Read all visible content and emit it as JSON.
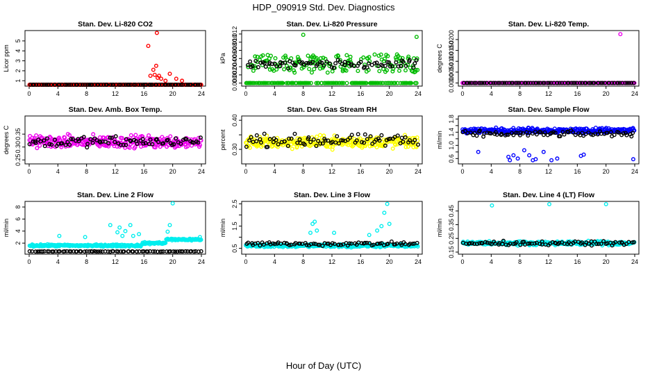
{
  "title": "HDP_090919  Std. Dev. Diagnostics",
  "xlabel": "Hour of Day (UTC)",
  "chart_data": [
    {
      "type": "scatter",
      "title": "Stan. Dev. Li-820 CO2",
      "ylabel": "Licor ppm",
      "xlim": [
        0,
        24
      ],
      "ylim": [
        0.6,
        5.9
      ],
      "xticks": [
        0,
        4,
        8,
        12,
        16,
        20,
        24
      ],
      "yticks": [
        1,
        2,
        3,
        4,
        5
      ],
      "ytick_labels": [
        "1",
        "2",
        "3",
        "4",
        "5"
      ],
      "series": [
        {
          "name": "main",
          "color": "#ff0000",
          "base": 0.42,
          "spread": 0.05,
          "kind": "band",
          "extra": [
            [
              16.6,
              4.5
            ],
            [
              16.9,
              1.5
            ],
            [
              17.3,
              2.1
            ],
            [
              17.5,
              1.6
            ],
            [
              17.7,
              2.5
            ],
            [
              17.8,
              5.8
            ],
            [
              17.9,
              1.3
            ],
            [
              18.1,
              1.5
            ],
            [
              18.4,
              1.2
            ],
            [
              19.0,
              1.0
            ],
            [
              19.6,
              1.7
            ],
            [
              20.5,
              1.2
            ],
            [
              21.3,
              1.0
            ]
          ]
        },
        {
          "name": "reference",
          "color": "#000000",
          "base": 0.42,
          "spread": 0.05
        }
      ]
    },
    {
      "type": "scatter",
      "title": "Stan. Dev. Li-820 Pressure",
      "ylabel": "kPa",
      "xlim": [
        0,
        24
      ],
      "ylim": [
        -0.0004,
        0.0125
      ],
      "xticks": [
        0,
        4,
        8,
        12,
        16,
        20,
        24
      ],
      "yticks": [
        0,
        0.002,
        0.004,
        0.006,
        0.008,
        0.01,
        0.012
      ],
      "ytick_labels": [
        "0.000",
        "0.002",
        "0.004",
        "0.006",
        "0.008",
        "0.010",
        "0.012"
      ],
      "series": [
        {
          "name": "main",
          "color": "#00bb00",
          "base": 0.0,
          "spread": 0.0,
          "kind": "pressure",
          "extra": [
            [
              8.0,
              0.0118
            ],
            [
              23.8,
              0.0113
            ]
          ]
        },
        {
          "name": "reference",
          "color": "#000000",
          "base": 0.0045,
          "spread": 0.0015
        }
      ]
    },
    {
      "type": "scatter",
      "title": "Stan. Dev. Li-820 Temp.",
      "ylabel": "degrees C",
      "xlim": [
        0,
        24
      ],
      "ylim": [
        -0.0008,
        0.0235
      ],
      "xticks": [
        0,
        4,
        8,
        12,
        16,
        20,
        24
      ],
      "yticks": [
        0,
        0.005,
        0.01,
        0.015,
        0.02
      ],
      "ytick_labels": [
        "0.0000",
        "0.0050",
        "0.0100",
        "0.0150",
        "0.0200"
      ],
      "series": [
        {
          "name": "main",
          "color": "#ee00ee",
          "base": 0.0,
          "spread": 0.0,
          "kind": "flat",
          "extra": [
            [
              22.0,
              0.0225
            ]
          ]
        },
        {
          "name": "reference",
          "color": "#000000",
          "base": 0.0,
          "spread": 0.0
        }
      ]
    },
    {
      "type": "scatter",
      "title": "Stan. Dev. Amb. Box Temp.",
      "ylabel": "degrees C",
      "xlim": [
        0,
        24
      ],
      "ylim": [
        0.24,
        0.415
      ],
      "xticks": [
        0,
        4,
        8,
        12,
        16,
        20,
        24
      ],
      "yticks": [
        0.25,
        0.3,
        0.35
      ],
      "ytick_labels": [
        "0.25",
        "0.30",
        "0.35"
      ],
      "series": [
        {
          "name": "main",
          "color": "#ee00ee",
          "base": 0.32,
          "spread": 0.035,
          "kind": "band"
        },
        {
          "name": "reference",
          "color": "#000000",
          "base": 0.32,
          "spread": 0.03
        }
      ]
    },
    {
      "type": "scatter",
      "title": "Stan. Dev. Gas Stream RH",
      "ylabel": "percent",
      "xlim": [
        0,
        24
      ],
      "ylim": [
        0.255,
        0.41
      ],
      "xticks": [
        0,
        4,
        8,
        12,
        16,
        20,
        24
      ],
      "yticks": [
        0.3,
        0.35,
        0.4
      ],
      "ytick_labels": [
        "0.30",
        "",
        "0.40"
      ],
      "series": [
        {
          "name": "main",
          "color": "#ffff00",
          "base": 0.325,
          "spread": 0.03,
          "kind": "band"
        },
        {
          "name": "reference",
          "color": "#000000",
          "base": 0.33,
          "spread": 0.03
        }
      ]
    },
    {
      "type": "scatter",
      "title": "Stan. Dev. Sample Flow",
      "ylabel": "ml/min",
      "xlim": [
        0,
        24
      ],
      "ylim": [
        0.48,
        1.85
      ],
      "xticks": [
        0,
        4,
        8,
        12,
        16,
        20,
        24
      ],
      "yticks": [
        0.6,
        0.8,
        1.0,
        1.2,
        1.4,
        1.6,
        1.8
      ],
      "ytick_labels": [
        "0.6",
        "",
        "1.0",
        "",
        "1.4",
        "",
        "1.8"
      ],
      "series": [
        {
          "name": "main",
          "color": "#0000ff",
          "base": 1.45,
          "spread": 0.12,
          "kind": "band",
          "extra": [
            [
              2.2,
              0.8
            ],
            [
              6.4,
              0.65
            ],
            [
              6.6,
              0.55
            ],
            [
              7.1,
              0.7
            ],
            [
              7.7,
              0.6
            ],
            [
              8.6,
              0.85
            ],
            [
              9.3,
              0.7
            ],
            [
              9.8,
              0.55
            ],
            [
              10.2,
              0.58
            ],
            [
              11.3,
              0.8
            ],
            [
              12.4,
              0.55
            ],
            [
              13.2,
              0.6
            ],
            [
              16.5,
              0.68
            ],
            [
              16.9,
              0.72
            ],
            [
              23.8,
              0.58
            ]
          ]
        },
        {
          "name": "reference",
          "color": "#000000",
          "base": 1.35,
          "spread": 0.12
        }
      ]
    },
    {
      "type": "scatter",
      "title": "Stan. Dev. Line 2 Flow",
      "ylabel": "ml/min",
      "xlim": [
        0,
        24
      ],
      "ylim": [
        0.4,
        8.7
      ],
      "xticks": [
        0,
        4,
        8,
        12,
        16,
        20,
        24
      ],
      "yticks": [
        2,
        4,
        6,
        8
      ],
      "ytick_labels": [
        "2",
        "4",
        "6",
        "8"
      ],
      "series": [
        {
          "name": "main",
          "color": "#00eeee",
          "base": 1.8,
          "spread": 0.25,
          "kind": "line2",
          "extra": [
            [
              4.2,
              3.2
            ],
            [
              7.8,
              3.0
            ],
            [
              11.3,
              5.0
            ],
            [
              12.3,
              3.8
            ],
            [
              12.6,
              4.6
            ],
            [
              13.0,
              3.2
            ],
            [
              13.4,
              4.0
            ],
            [
              14.1,
              5.0
            ],
            [
              14.5,
              3.2
            ],
            [
              15.3,
              3.5
            ],
            [
              19.3,
              3.9
            ],
            [
              19.6,
              5.0
            ],
            [
              20.0,
              8.6
            ],
            [
              23.8,
              3.0
            ]
          ]
        },
        {
          "name": "reference",
          "color": "#000000",
          "base": 0.62,
          "spread": 0.05
        }
      ]
    },
    {
      "type": "scatter",
      "title": "Stan. Dev. Line 3 Flow",
      "ylabel": "ml/min",
      "xlim": [
        0,
        24
      ],
      "ylim": [
        0.3,
        2.55
      ],
      "xticks": [
        0,
        4,
        8,
        12,
        16,
        20,
        24
      ],
      "yticks": [
        0.5,
        1.0,
        1.5,
        2.0,
        2.5
      ],
      "ytick_labels": [
        "0.5",
        "",
        "1.5",
        "",
        "2.5"
      ],
      "series": [
        {
          "name": "main",
          "color": "#00eeee",
          "base": 0.62,
          "spread": 0.1,
          "kind": "band",
          "extra": [
            [
              9.0,
              1.2
            ],
            [
              9.3,
              1.6
            ],
            [
              9.6,
              1.7
            ],
            [
              9.9,
              1.3
            ],
            [
              12.3,
              1.2
            ],
            [
              17.2,
              1.1
            ],
            [
              18.3,
              1.3
            ],
            [
              18.9,
              1.5
            ],
            [
              19.3,
              2.1
            ],
            [
              19.7,
              2.5
            ],
            [
              20.0,
              1.6
            ]
          ]
        },
        {
          "name": "reference",
          "color": "#000000",
          "base": 0.7,
          "spread": 0.12
        }
      ]
    },
    {
      "type": "scatter",
      "title": "Stan. Dev. Line 4 (LT) Flow",
      "ylabel": "ml/min",
      "xlim": [
        0,
        24
      ],
      "ylim": [
        0.145,
        0.51
      ],
      "xticks": [
        0,
        4,
        8,
        12,
        16,
        20,
        24
      ],
      "yticks": [
        0.15,
        0.25,
        0.35,
        0.45
      ],
      "ytick_labels": [
        "0.15",
        "0.25",
        "0.35",
        "0.45"
      ],
      "series": [
        {
          "name": "main",
          "color": "#00eeee",
          "base": 0.215,
          "spread": 0.02,
          "kind": "band",
          "extra": [
            [
              4.1,
              0.49
            ],
            [
              12.1,
              0.5
            ],
            [
              20.0,
              0.5
            ]
          ]
        },
        {
          "name": "reference",
          "color": "#000000",
          "base": 0.215,
          "spread": 0.02
        }
      ]
    }
  ]
}
